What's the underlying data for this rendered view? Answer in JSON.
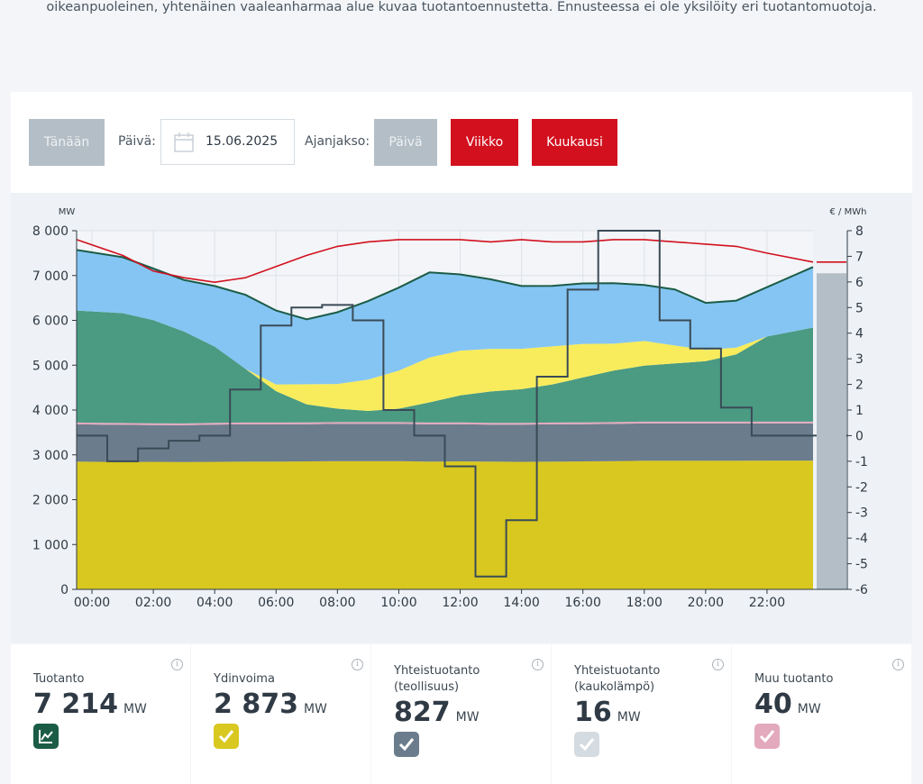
{
  "intro": {
    "text": "oikeanpuoleinen, yhtenäinen vaaleanharmaa alue kuvaa tuotantoennustetta. Ennusteessa ei ole yksilöity eri tuotantomuotoja."
  },
  "controls": {
    "today_label": "Tänään",
    "date_label": "Päivä:",
    "date_value": "15.06.2025",
    "period_label": "Ajanjakso:",
    "period_day": "Päivä",
    "period_week": "Viikko",
    "period_month": "Kuukausi",
    "calendar_icon": "calendar-icon",
    "colors": {
      "inactive": "#b3bec6",
      "active": "#d2101e"
    }
  },
  "chart_data": {
    "type": "area",
    "y_left_unit": "MW",
    "y_right_unit": "€ / MWh",
    "ylim_left": [
      0,
      8000
    ],
    "ylim_right": [
      -6,
      8
    ],
    "yticks_left": [
      "0",
      "1 000",
      "2 000",
      "3 000",
      "4 000",
      "5 000",
      "6 000",
      "7 000",
      "8 000"
    ],
    "yticks_right": [
      "-6",
      "-5",
      "-4",
      "-3",
      "-2",
      "-1",
      "0",
      "1",
      "2",
      "3",
      "4",
      "5",
      "6",
      "7",
      "8"
    ],
    "xticks": [
      "00:00",
      "02:00",
      "04:00",
      "06:00",
      "08:00",
      "10:00",
      "12:00",
      "14:00",
      "16:00",
      "18:00",
      "20:00",
      "22:00"
    ],
    "x_hours": [
      0,
      1,
      2,
      3,
      4,
      5,
      6,
      7,
      8,
      9,
      10,
      11,
      12,
      13,
      14,
      15,
      16,
      17,
      18,
      19,
      20,
      21,
      22,
      23
    ],
    "grid": true,
    "series": [
      {
        "name": "Ydinvoima",
        "color": "#d9c81f",
        "values": [
          2850,
          2840,
          2845,
          2840,
          2845,
          2850,
          2850,
          2855,
          2860,
          2860,
          2860,
          2850,
          2855,
          2850,
          2845,
          2850,
          2855,
          2860,
          2870,
          2870,
          2870,
          2870,
          2873,
          2873
        ]
      },
      {
        "color": "#6b7c8c",
        "values": [
          830,
          830,
          820,
          820,
          830,
          830,
          830,
          830,
          830,
          830,
          830,
          830,
          830,
          825,
          830,
          830,
          830,
          830,
          830,
          830,
          830,
          830,
          827,
          827
        ]
      },
      {
        "color": "#e3a9bd",
        "values": [
          40,
          40,
          40,
          40,
          40,
          40,
          40,
          40,
          40,
          40,
          40,
          40,
          40,
          40,
          40,
          40,
          40,
          40,
          40,
          40,
          40,
          40,
          40,
          40
        ]
      },
      {
        "color": "#4b9a82",
        "values": [
          2500,
          2450,
          2300,
          2050,
          1700,
          1200,
          700,
          400,
          300,
          250,
          300,
          450,
          600,
          700,
          750,
          850,
          1000,
          1150,
          1250,
          1300,
          1350,
          1500,
          1900,
          2100
        ]
      },
      {
        "color": "#f8ec5c",
        "values": [
          0,
          0,
          0,
          0,
          0,
          0,
          150,
          450,
          550,
          700,
          850,
          1000,
          1000,
          950,
          900,
          850,
          750,
          600,
          550,
          400,
          250,
          150,
          0,
          0
        ]
      },
      {
        "color": "#85c5f3",
        "values": [
          1350,
          1250,
          1150,
          1150,
          1350,
          1650,
          1650,
          1450,
          1600,
          1750,
          1850,
          1900,
          1700,
          1550,
          1400,
          1350,
          1350,
          1350,
          1250,
          1250,
          1050,
          1050,
          1100,
          1350
        ]
      }
    ],
    "consumption": {
      "color": "#d2101e",
      "values": [
        7800,
        7450,
        7100,
        6950,
        6850,
        6950,
        7200,
        7450,
        7650,
        7750,
        7800,
        7800,
        7800,
        7750,
        7800,
        7750,
        7750,
        7800,
        7800,
        7750,
        7700,
        7650,
        7500,
        7300
      ]
    },
    "price_eur_mwh": {
      "color": "#3a4b57",
      "values": [
        0,
        -1,
        -0.5,
        -0.2,
        0,
        1.8,
        4.3,
        5,
        5.1,
        4.5,
        1,
        0,
        -1.2,
        -5.5,
        -3.3,
        2.3,
        5.7,
        8,
        8,
        4.5,
        3.4,
        1.1,
        0,
        0
      ]
    },
    "forecast": {
      "color": "#b3bec6",
      "value": 7050,
      "consumption": 7300
    }
  },
  "cards": [
    {
      "title": "Tuotanto",
      "value": "7 214",
      "unit": "MW",
      "icon": "line-chart-icon",
      "color": "#1b5c46"
    },
    {
      "title": "Ydinvoima",
      "value": "2 873",
      "unit": "MW",
      "icon": "check-icon",
      "color": "#d9c81f"
    },
    {
      "title": "Yhteistuotanto (teollisuus)",
      "value": "827",
      "unit": "MW",
      "icon": "check-icon",
      "color": "#6b7c8c"
    },
    {
      "title": "Yhteistuotanto (kaukolämpö)",
      "value": "16",
      "unit": "MW",
      "icon": "check-icon",
      "color": "#d4dbe1"
    },
    {
      "title": "Muu tuotanto",
      "value": "40",
      "unit": "MW",
      "icon": "check-icon",
      "color": "#e3a9bd"
    }
  ]
}
